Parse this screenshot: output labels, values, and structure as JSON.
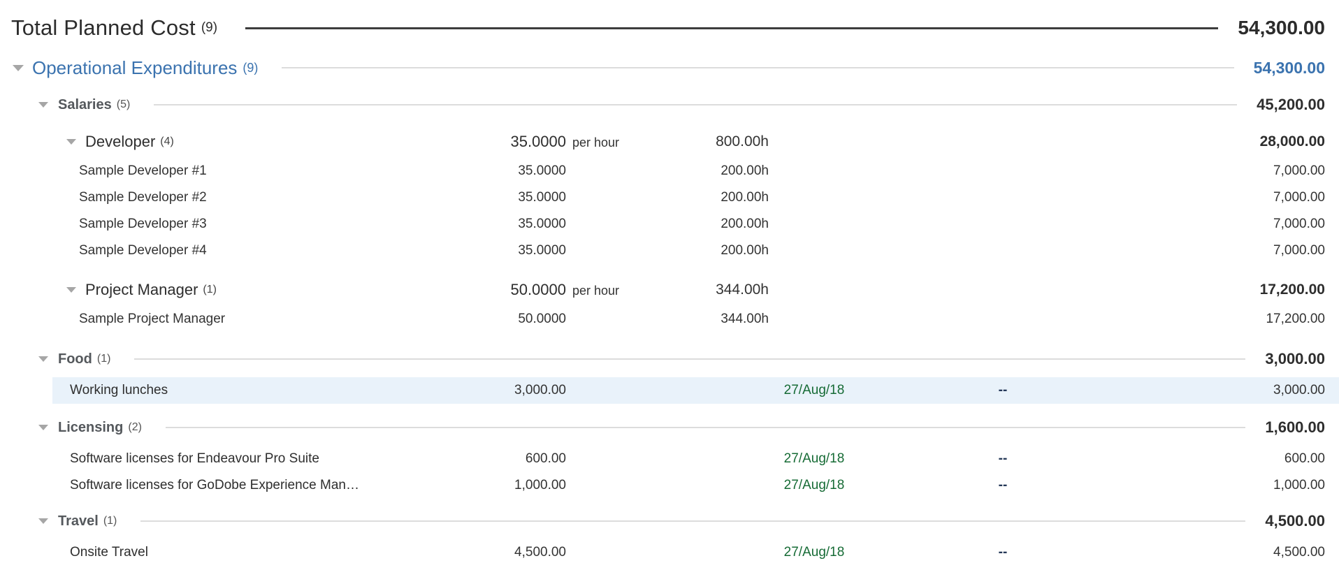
{
  "colors": {
    "accent_blue": "#3b73af",
    "date_green": "#166b35",
    "dash_navy": "#253858",
    "highlight_row": "#e9f2fa",
    "category_header": "#54585c",
    "leader_line_dark": "#3d3d3d",
    "leader_line_light": "#dcdcdc",
    "triangle_gray": "#a6a6a6"
  },
  "icons": {
    "collapse": "triangle-down-icon"
  },
  "total": {
    "label": "Total Planned Cost",
    "count": "(9)",
    "amount": "54,300.00"
  },
  "group": {
    "label": "Operational Expenditures",
    "count": "(9)",
    "amount": "54,300.00"
  },
  "salaries": {
    "label": "Salaries",
    "count": "(5)",
    "amount": "45,200.00",
    "roles": [
      {
        "label": "Developer",
        "count": "(4)",
        "rate": "35.0000",
        "rate_unit": "per hour",
        "hours": "800.00h",
        "amount": "28,000.00",
        "members": [
          {
            "name": "Sample Developer #1",
            "rate": "35.0000",
            "hours": "200.00h",
            "amount": "7,000.00"
          },
          {
            "name": "Sample Developer #2",
            "rate": "35.0000",
            "hours": "200.00h",
            "amount": "7,000.00"
          },
          {
            "name": "Sample Developer #3",
            "rate": "35.0000",
            "hours": "200.00h",
            "amount": "7,000.00"
          },
          {
            "name": "Sample Developer #4",
            "rate": "35.0000",
            "hours": "200.00h",
            "amount": "7,000.00"
          }
        ]
      },
      {
        "label": "Project Manager",
        "count": "(1)",
        "rate": "50.0000",
        "rate_unit": "per hour",
        "hours": "344.00h",
        "amount": "17,200.00",
        "members": [
          {
            "name": "Sample Project Manager",
            "rate": "50.0000",
            "hours": "344.00h",
            "amount": "17,200.00"
          }
        ]
      }
    ]
  },
  "food": {
    "label": "Food",
    "count": "(1)",
    "amount": "3,000.00",
    "expenses": [
      {
        "name": "Working lunches",
        "cost": "3,000.00",
        "date": "27/Aug/18",
        "placeholder": "--",
        "amount": "3,000.00"
      }
    ]
  },
  "licensing": {
    "label": "Licensing",
    "count": "(2)",
    "amount": "1,600.00",
    "expenses": [
      {
        "name": "Software licenses for Endeavour Pro Suite",
        "cost": "600.00",
        "date": "27/Aug/18",
        "placeholder": "--",
        "amount": "600.00"
      },
      {
        "name": "Software licenses for GoDobe Experience Man…",
        "cost": "1,000.00",
        "date": "27/Aug/18",
        "placeholder": "--",
        "amount": "1,000.00"
      }
    ]
  },
  "travel": {
    "label": "Travel",
    "count": "(1)",
    "amount": "4,500.00",
    "expenses": [
      {
        "name": "Onsite Travel",
        "cost": "4,500.00",
        "date": "27/Aug/18",
        "placeholder": "--",
        "amount": "4,500.00"
      }
    ]
  }
}
